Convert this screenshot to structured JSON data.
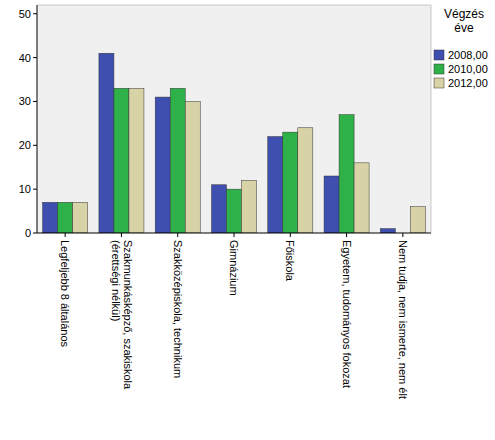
{
  "chart_data": {
    "type": "bar",
    "legend_title": "Végzés éve",
    "categories": [
      "Legfeljebb 8 általános",
      "Szakmunkásképző, szakiskola (érettségi nélkül)",
      "Szakközépiskola, technikum",
      "Gimnázium",
      "Főiskola",
      "Egyetem, tudományos fokozat",
      "Nem tudja, nem ismerte, nem élt"
    ],
    "series": [
      {
        "name": "2008,00",
        "color": "#3f4fb0",
        "values": [
          7,
          41,
          31,
          11,
          22,
          13,
          1
        ]
      },
      {
        "name": "2010,00",
        "color": "#2fb14a",
        "values": [
          7,
          33,
          33,
          10,
          23,
          27,
          0
        ]
      },
      {
        "name": "2012,00",
        "color": "#d8d3a6",
        "values": [
          7,
          33,
          30,
          12,
          24,
          16,
          6
        ]
      }
    ],
    "ylim": [
      0,
      52
    ],
    "yticks": [
      0,
      10,
      20,
      30,
      40,
      50
    ],
    "grid": false,
    "legend": "right"
  }
}
